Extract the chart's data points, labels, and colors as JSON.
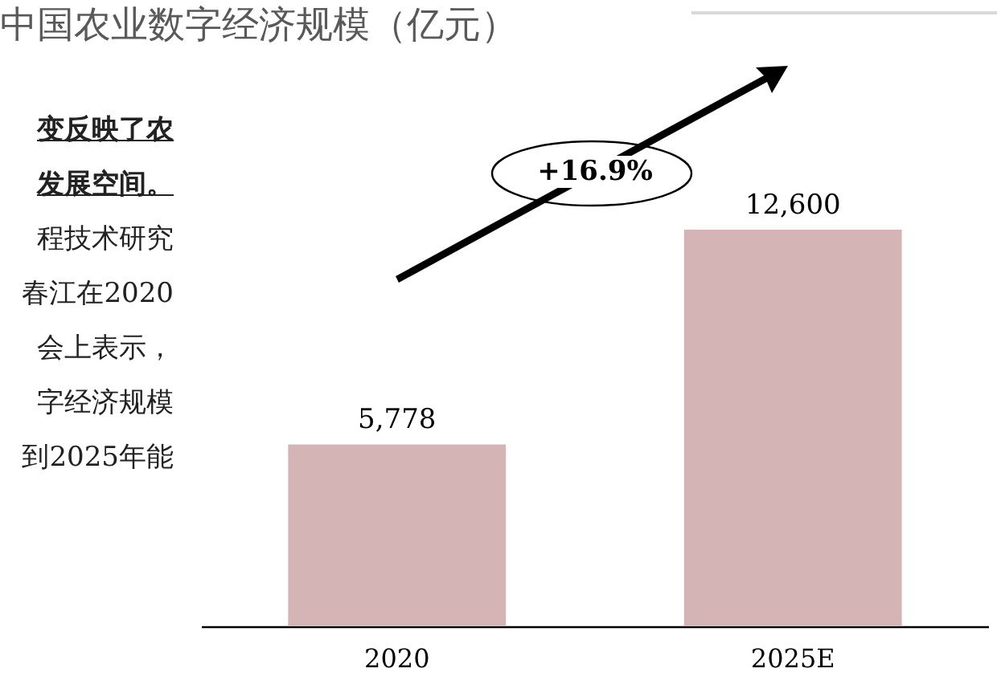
{
  "chart_data": {
    "type": "bar",
    "title": "中国农业数字经济规模（亿元）",
    "categories": [
      "2020",
      "2025E"
    ],
    "values": [
      5778,
      12600
    ],
    "color": "#d4b4b4",
    "value_labels": [
      "5,778",
      "12,600"
    ],
    "annotations": [
      "+16.9%",
      "变反映了农",
      "发展空间。",
      "程技术研究",
      "春江在2020",
      "会上表示，",
      "字经济规模",
      "到2025年能"
    ]
  }
}
